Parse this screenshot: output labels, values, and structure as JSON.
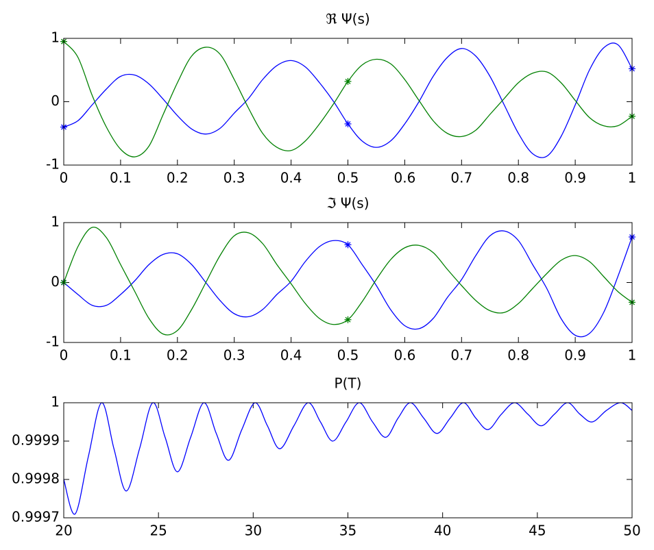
{
  "chart_data": [
    {
      "type": "line",
      "title": "ℜ Ψ(s)",
      "x": [
        0,
        0.025,
        0.05,
        0.075,
        0.1,
        0.125,
        0.15,
        0.175,
        0.2,
        0.225,
        0.25,
        0.275,
        0.3,
        0.325,
        0.35,
        0.375,
        0.4,
        0.425,
        0.45,
        0.475,
        0.5,
        0.525,
        0.55,
        0.575,
        0.6,
        0.625,
        0.65,
        0.675,
        0.7,
        0.725,
        0.75,
        0.775,
        0.8,
        0.825,
        0.85,
        0.875,
        0.9,
        0.925,
        0.95,
        0.975,
        1
      ],
      "series": [
        {
          "color": "#0000ff",
          "values": [
            -0.4,
            -0.3,
            -0.05,
            0.2,
            0.4,
            0.42,
            0.28,
            0.04,
            -0.22,
            -0.43,
            -0.51,
            -0.42,
            -0.18,
            0.05,
            0.35,
            0.57,
            0.65,
            0.55,
            0.3,
            0,
            -0.35,
            -0.62,
            -0.72,
            -0.62,
            -0.35,
            0,
            0.4,
            0.7,
            0.84,
            0.72,
            0.4,
            -0.05,
            -0.5,
            -0.82,
            -0.86,
            -0.55,
            -0.05,
            0.5,
            0.85,
            0.9,
            0.52
          ]
        },
        {
          "color": "#008000",
          "values": [
            0.95,
            0.7,
            0.1,
            -0.4,
            -0.75,
            -0.87,
            -0.7,
            -0.2,
            0.3,
            0.72,
            0.86,
            0.75,
            0.35,
            -0.1,
            -0.5,
            -0.72,
            -0.77,
            -0.62,
            -0.35,
            -0.03,
            0.32,
            0.58,
            0.67,
            0.6,
            0.35,
            0.02,
            -0.3,
            -0.5,
            -0.55,
            -0.45,
            -0.2,
            0.05,
            0.3,
            0.45,
            0.47,
            0.3,
            0.02,
            -0.25,
            -0.38,
            -0.38,
            -0.23
          ]
        }
      ],
      "marker_x": [
        0,
        0.5,
        1
      ],
      "xlim": [
        0,
        1
      ],
      "xticks": [
        0,
        0.1,
        0.2,
        0.3,
        0.4,
        0.5,
        0.6,
        0.7,
        0.8,
        0.9,
        1
      ],
      "ylim": [
        -1,
        1
      ],
      "yticks": [
        -1,
        0,
        1
      ]
    },
    {
      "type": "line",
      "title": "ℑ Ψ(s)",
      "x": [
        0,
        0.025,
        0.05,
        0.075,
        0.1,
        0.125,
        0.15,
        0.175,
        0.2,
        0.225,
        0.25,
        0.275,
        0.3,
        0.325,
        0.35,
        0.375,
        0.4,
        0.425,
        0.45,
        0.475,
        0.5,
        0.525,
        0.55,
        0.575,
        0.6,
        0.625,
        0.65,
        0.675,
        0.7,
        0.725,
        0.75,
        0.775,
        0.8,
        0.825,
        0.85,
        0.875,
        0.9,
        0.925,
        0.95,
        0.975,
        1
      ],
      "series": [
        {
          "color": "#0000ff",
          "values": [
            0,
            -0.2,
            -0.38,
            -0.38,
            -0.2,
            0.03,
            0.3,
            0.47,
            0.48,
            0.3,
            0,
            -0.3,
            -0.52,
            -0.57,
            -0.45,
            -0.2,
            0.02,
            0.35,
            0.6,
            0.7,
            0.63,
            0.3,
            -0.05,
            -0.45,
            -0.72,
            -0.77,
            -0.6,
            -0.25,
            0.05,
            0.45,
            0.78,
            0.86,
            0.7,
            0.3,
            -0.1,
            -0.6,
            -0.88,
            -0.85,
            -0.5,
            0.1,
            0.76
          ]
        },
        {
          "color": "#008000",
          "values": [
            0,
            0.6,
            0.92,
            0.75,
            0.3,
            -0.15,
            -0.6,
            -0.86,
            -0.8,
            -0.45,
            0,
            0.45,
            0.78,
            0.83,
            0.65,
            0.3,
            -0.02,
            -0.35,
            -0.6,
            -0.7,
            -0.62,
            -0.32,
            0.05,
            0.38,
            0.58,
            0.62,
            0.5,
            0.22,
            -0.05,
            -0.3,
            -0.47,
            -0.5,
            -0.35,
            -0.1,
            0.15,
            0.37,
            0.45,
            0.35,
            0.1,
            -0.15,
            -0.33
          ]
        }
      ],
      "marker_x": [
        0,
        0.5,
        1
      ],
      "xlim": [
        0,
        1
      ],
      "xticks": [
        0,
        0.1,
        0.2,
        0.3,
        0.4,
        0.5,
        0.6,
        0.7,
        0.8,
        0.9,
        1
      ],
      "ylim": [
        -1,
        1
      ],
      "yticks": [
        -1,
        0,
        1
      ]
    },
    {
      "type": "line",
      "title": "P(T)",
      "x": [
        20,
        20.6,
        21.3,
        22,
        22.65,
        23.3,
        24,
        24.7,
        25.35,
        26,
        26.7,
        27.4,
        28.05,
        28.7,
        29.4,
        30.1,
        30.75,
        31.4,
        32.15,
        32.9,
        33.55,
        34.2,
        34.9,
        35.6,
        36.3,
        37,
        37.65,
        38.3,
        39,
        39.7,
        40.4,
        41.1,
        41.75,
        42.4,
        43.1,
        43.8,
        44.5,
        45.2,
        45.9,
        46.6,
        47.25,
        47.9,
        48.65,
        49.4,
        50
      ],
      "series": [
        {
          "color": "#0000ff",
          "values": [
            0.9998,
            0.99971,
            0.99986,
            1,
            0.99988,
            0.99977,
            0.99988,
            1,
            0.99991,
            0.99982,
            0.99991,
            1,
            0.99992,
            0.99985,
            0.99993,
            1,
            0.99994,
            0.99988,
            0.99994,
            1,
            0.99995,
            0.9999,
            0.99995,
            1,
            0.99995,
            0.99991,
            0.99996,
            1,
            0.99996,
            0.99992,
            0.99996,
            1,
            0.99996,
            0.99993,
            0.99997,
            1,
            0.99997,
            0.99994,
            0.99997,
            1,
            0.99997,
            0.99995,
            0.99998,
            1,
            0.99998
          ]
        }
      ],
      "xlim": [
        20,
        50
      ],
      "xticks": [
        20,
        25,
        30,
        35,
        40,
        45,
        50
      ],
      "ylim": [
        0.9997,
        1
      ],
      "yticks": [
        0.9997,
        0.9998,
        0.9999,
        1
      ]
    }
  ]
}
